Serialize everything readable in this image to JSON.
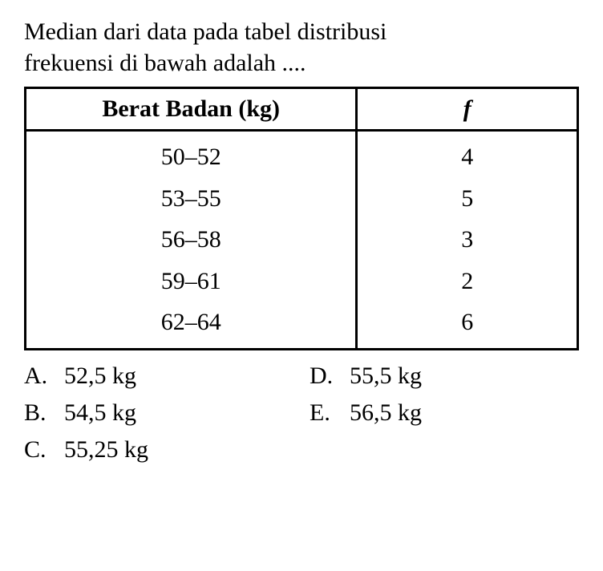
{
  "question": {
    "line1": "Median dari data pada tabel distribusi",
    "line2": "frekuensi di bawah adalah ...."
  },
  "table": {
    "headers": {
      "col1": "Berat Badan (kg)",
      "col2": "f"
    },
    "rows": [
      {
        "range": "50–52",
        "freq": "4"
      },
      {
        "range": "53–55",
        "freq": "5"
      },
      {
        "range": "56–58",
        "freq": "3"
      },
      {
        "range": "59–61",
        "freq": "2"
      },
      {
        "range": "62–64",
        "freq": "6"
      }
    ]
  },
  "options": {
    "a": {
      "label": "A.",
      "text": "52,5 kg"
    },
    "b": {
      "label": "B.",
      "text": "54,5 kg"
    },
    "c": {
      "label": "C.",
      "text": "55,25 kg"
    },
    "d": {
      "label": "D.",
      "text": "55,5 kg"
    },
    "e": {
      "label": "E.",
      "text": "56,5 kg"
    }
  },
  "styling": {
    "background_color": "#ffffff",
    "text_color": "#000000",
    "border_color": "#000000",
    "border_width": 3,
    "question_fontsize": 30,
    "table_fontsize": 30,
    "options_fontsize": 30,
    "font_family": "Georgia, Times New Roman, serif"
  }
}
